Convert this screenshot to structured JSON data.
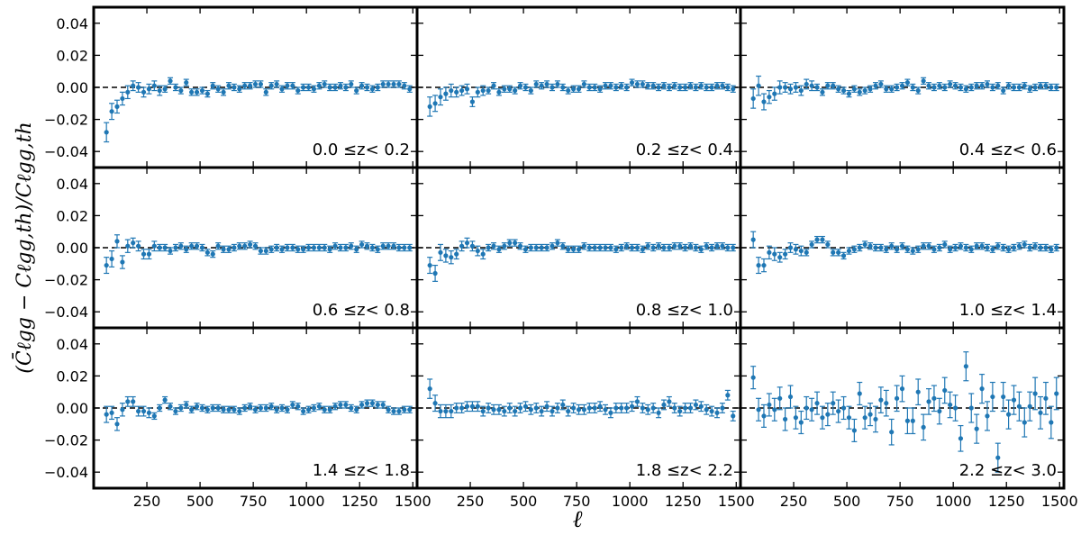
{
  "chart_data": {
    "type": "scatter",
    "xlabel": "ℓ",
    "ylabel": "(C̄ℓgg − Cℓgg,th)/Cℓgg,th",
    "xlim": [
      0,
      1520
    ],
    "ylim": [
      -0.05,
      0.05
    ],
    "xticks": [
      250,
      500,
      750,
      1000,
      1250,
      1500
    ],
    "yticks": [
      -0.04,
      -0.02,
      0.0,
      0.02,
      0.04
    ],
    "xtick_labels": [
      "250",
      "500",
      "750",
      "1000",
      "1250",
      "1500"
    ],
    "ytick_labels": [
      "−0.04",
      "−0.02",
      "0.00",
      "0.02",
      "0.04"
    ],
    "reference_line": 0.0,
    "marker_color": "#1f77b4",
    "x": [
      60,
      85,
      110,
      135,
      160,
      185,
      210,
      235,
      260,
      285,
      310,
      335,
      360,
      385,
      410,
      435,
      460,
      485,
      510,
      535,
      560,
      585,
      610,
      635,
      660,
      685,
      710,
      735,
      760,
      785,
      810,
      835,
      860,
      885,
      910,
      935,
      960,
      985,
      1010,
      1035,
      1060,
      1085,
      1110,
      1135,
      1160,
      1185,
      1210,
      1235,
      1260,
      1285,
      1310,
      1335,
      1360,
      1385,
      1410,
      1435,
      1460,
      1485
    ],
    "panels": [
      {
        "label": "0.0  ≤z<  0.2",
        "y": [
          -0.028,
          -0.015,
          -0.012,
          -0.007,
          -0.003,
          0.001,
          0.0,
          -0.003,
          -0.001,
          0.001,
          -0.002,
          -0.001,
          0.004,
          0.0,
          -0.002,
          0.003,
          -0.003,
          -0.003,
          -0.002,
          -0.004,
          0.001,
          -0.001,
          -0.003,
          0.001,
          0.0,
          -0.001,
          0.001,
          0.001,
          0.002,
          0.002,
          -0.003,
          0.001,
          0.002,
          -0.001,
          0.001,
          0.001,
          -0.002,
          0.0,
          0.0,
          -0.001,
          0.001,
          0.002,
          0.0,
          0.0,
          0.001,
          0.0,
          0.002,
          -0.002,
          0.001,
          0.0,
          -0.001,
          0.0,
          0.002,
          0.002,
          0.002,
          0.002,
          0.001,
          -0.001
        ],
        "err": [
          0.006,
          0.005,
          0.004,
          0.004,
          0.004,
          0.003,
          0.003,
          0.003,
          0.003,
          0.003,
          0.003,
          0.002,
          0.002,
          0.002,
          0.002,
          0.002,
          0.002,
          0.002,
          0.002,
          0.002,
          0.002,
          0.002,
          0.002,
          0.002,
          0.002,
          0.002,
          0.002,
          0.002,
          0.002,
          0.002,
          0.002,
          0.002,
          0.002,
          0.002,
          0.002,
          0.002,
          0.002,
          0.002,
          0.002,
          0.002,
          0.002,
          0.002,
          0.002,
          0.002,
          0.002,
          0.002,
          0.002,
          0.002,
          0.002,
          0.002,
          0.002,
          0.002,
          0.002,
          0.002,
          0.002,
          0.002,
          0.002,
          0.002
        ]
      },
      {
        "label": "0.2  ≤z<  0.4",
        "y": [
          -0.012,
          -0.01,
          -0.006,
          -0.004,
          -0.002,
          -0.003,
          -0.002,
          -0.001,
          -0.009,
          -0.003,
          -0.002,
          -0.002,
          0.001,
          -0.003,
          -0.001,
          -0.001,
          -0.002,
          0.001,
          0.0,
          -0.002,
          0.002,
          0.001,
          0.002,
          0.0,
          0.002,
          0.0,
          -0.002,
          -0.001,
          -0.001,
          0.002,
          0.0,
          0.0,
          -0.001,
          0.001,
          0.001,
          0.0,
          0.001,
          0.0,
          0.003,
          0.002,
          0.002,
          0.001,
          0.001,
          0.0,
          0.001,
          0.0,
          0.001,
          0.0,
          0.0,
          0.001,
          0.0,
          0.001,
          0.0,
          0.0,
          0.001,
          0.001,
          0.0,
          -0.001
        ],
        "err": [
          0.006,
          0.005,
          0.005,
          0.004,
          0.004,
          0.003,
          0.003,
          0.003,
          0.003,
          0.003,
          0.003,
          0.002,
          0.002,
          0.002,
          0.002,
          0.002,
          0.002,
          0.002,
          0.002,
          0.002,
          0.002,
          0.002,
          0.002,
          0.002,
          0.002,
          0.002,
          0.002,
          0.002,
          0.002,
          0.002,
          0.002,
          0.002,
          0.002,
          0.002,
          0.002,
          0.002,
          0.002,
          0.002,
          0.002,
          0.002,
          0.002,
          0.002,
          0.002,
          0.002,
          0.002,
          0.002,
          0.002,
          0.002,
          0.002,
          0.002,
          0.002,
          0.002,
          0.002,
          0.002,
          0.002,
          0.002,
          0.002,
          0.002
        ]
      },
      {
        "label": "0.4  ≤z<  0.6",
        "y": [
          -0.007,
          0.001,
          -0.009,
          -0.006,
          -0.004,
          0.0,
          0.0,
          -0.001,
          0.0,
          -0.002,
          0.002,
          0.001,
          0.0,
          -0.003,
          0.001,
          0.001,
          -0.001,
          -0.002,
          -0.004,
          -0.001,
          -0.003,
          -0.002,
          -0.001,
          0.001,
          0.002,
          -0.001,
          -0.001,
          0.0,
          0.001,
          0.003,
          0.0,
          -0.002,
          0.004,
          0.001,
          0.0,
          0.001,
          0.0,
          0.002,
          0.001,
          0.0,
          -0.001,
          0.0,
          0.001,
          0.001,
          0.002,
          0.0,
          0.001,
          -0.002,
          0.001,
          0.0,
          0.0,
          0.001,
          -0.001,
          0.0,
          0.001,
          0.001,
          0.0,
          0.0
        ],
        "err": [
          0.006,
          0.006,
          0.005,
          0.004,
          0.004,
          0.004,
          0.003,
          0.003,
          0.003,
          0.003,
          0.003,
          0.003,
          0.002,
          0.002,
          0.002,
          0.002,
          0.002,
          0.002,
          0.002,
          0.002,
          0.002,
          0.002,
          0.002,
          0.002,
          0.002,
          0.002,
          0.002,
          0.002,
          0.002,
          0.002,
          0.002,
          0.002,
          0.002,
          0.002,
          0.002,
          0.002,
          0.002,
          0.002,
          0.002,
          0.002,
          0.002,
          0.002,
          0.002,
          0.002,
          0.002,
          0.002,
          0.002,
          0.002,
          0.002,
          0.002,
          0.002,
          0.002,
          0.002,
          0.002,
          0.002,
          0.002,
          0.002,
          0.002
        ]
      },
      {
        "label": "0.6  ≤z<  0.8",
        "y": [
          -0.011,
          -0.007,
          0.004,
          -0.009,
          0.001,
          0.003,
          0.001,
          -0.004,
          -0.004,
          0.001,
          0.0,
          0.0,
          -0.002,
          0.0,
          0.001,
          -0.001,
          0.001,
          0.001,
          0.0,
          -0.003,
          -0.004,
          0.001,
          -0.001,
          -0.001,
          0.0,
          0.001,
          0.001,
          0.002,
          0.001,
          -0.002,
          -0.002,
          -0.001,
          0.0,
          -0.001,
          0.0,
          0.0,
          -0.001,
          -0.001,
          0.0,
          0.0,
          0.0,
          0.0,
          -0.001,
          0.001,
          0.0,
          0.0,
          0.001,
          -0.001,
          0.002,
          0.001,
          0.0,
          -0.001,
          0.001,
          0.001,
          0.001,
          0.0,
          0.0,
          0.0
        ],
        "err": [
          0.005,
          0.005,
          0.004,
          0.004,
          0.004,
          0.003,
          0.003,
          0.003,
          0.003,
          0.003,
          0.002,
          0.002,
          0.002,
          0.002,
          0.002,
          0.002,
          0.002,
          0.002,
          0.002,
          0.002,
          0.002,
          0.002,
          0.002,
          0.002,
          0.002,
          0.002,
          0.002,
          0.002,
          0.002,
          0.002,
          0.002,
          0.002,
          0.002,
          0.002,
          0.002,
          0.002,
          0.002,
          0.002,
          0.002,
          0.002,
          0.002,
          0.002,
          0.002,
          0.002,
          0.002,
          0.002,
          0.002,
          0.002,
          0.002,
          0.002,
          0.002,
          0.002,
          0.002,
          0.002,
          0.002,
          0.002,
          0.002,
          0.002
        ]
      },
      {
        "label": "0.8  ≤z<  1.0",
        "y": [
          -0.011,
          -0.016,
          -0.003,
          -0.005,
          -0.006,
          -0.004,
          0.001,
          0.003,
          0.001,
          -0.002,
          -0.004,
          0.0,
          0.001,
          -0.001,
          0.001,
          0.003,
          0.003,
          0.001,
          -0.001,
          0.0,
          0.0,
          0.0,
          0.0,
          0.001,
          0.003,
          0.001,
          -0.001,
          -0.001,
          -0.001,
          0.001,
          0.0,
          0.0,
          0.0,
          0.0,
          0.0,
          -0.001,
          0.0,
          0.001,
          0.0,
          0.0,
          -0.001,
          0.001,
          0.0,
          0.001,
          0.0,
          0.0,
          0.001,
          0.001,
          0.0,
          0.001,
          0.0,
          -0.001,
          0.001,
          0.0,
          0.001,
          0.001,
          0.0,
          0.0
        ],
        "err": [
          0.005,
          0.005,
          0.005,
          0.004,
          0.004,
          0.003,
          0.003,
          0.003,
          0.003,
          0.003,
          0.003,
          0.002,
          0.002,
          0.002,
          0.002,
          0.002,
          0.002,
          0.002,
          0.002,
          0.002,
          0.002,
          0.002,
          0.002,
          0.002,
          0.002,
          0.002,
          0.002,
          0.002,
          0.002,
          0.002,
          0.002,
          0.002,
          0.002,
          0.002,
          0.002,
          0.002,
          0.002,
          0.002,
          0.002,
          0.002,
          0.002,
          0.002,
          0.002,
          0.002,
          0.002,
          0.002,
          0.002,
          0.002,
          0.002,
          0.002,
          0.002,
          0.002,
          0.002,
          0.002,
          0.002,
          0.002,
          0.002,
          0.002
        ]
      },
      {
        "label": "1.0  ≤z<  1.4",
        "y": [
          0.005,
          -0.011,
          -0.011,
          -0.003,
          -0.004,
          -0.006,
          -0.004,
          0.0,
          -0.001,
          -0.002,
          -0.003,
          0.002,
          0.005,
          0.005,
          0.002,
          -0.003,
          -0.003,
          -0.005,
          -0.002,
          -0.001,
          0.0,
          0.002,
          0.001,
          0.0,
          0.0,
          -0.001,
          0.001,
          -0.001,
          0.001,
          -0.001,
          -0.002,
          -0.001,
          0.001,
          0.001,
          -0.001,
          0.0,
          0.002,
          -0.001,
          0.0,
          0.001,
          0.0,
          -0.001,
          0.001,
          0.001,
          0.0,
          -0.001,
          0.001,
          0.0,
          -0.001,
          0.0,
          0.001,
          0.002,
          0.0,
          0.001,
          0.0,
          0.0,
          -0.001,
          0.0
        ],
        "err": [
          0.005,
          0.005,
          0.004,
          0.004,
          0.004,
          0.003,
          0.003,
          0.003,
          0.003,
          0.003,
          0.002,
          0.002,
          0.002,
          0.002,
          0.002,
          0.002,
          0.002,
          0.002,
          0.002,
          0.002,
          0.002,
          0.002,
          0.002,
          0.002,
          0.002,
          0.002,
          0.002,
          0.002,
          0.002,
          0.002,
          0.002,
          0.002,
          0.002,
          0.002,
          0.002,
          0.002,
          0.002,
          0.002,
          0.002,
          0.002,
          0.002,
          0.002,
          0.002,
          0.002,
          0.002,
          0.002,
          0.002,
          0.002,
          0.002,
          0.002,
          0.002,
          0.002,
          0.002,
          0.002,
          0.002,
          0.002,
          0.002,
          0.002
        ]
      },
      {
        "label": "1.4  ≤z<  1.8",
        "y": [
          -0.004,
          -0.003,
          -0.01,
          -0.001,
          0.004,
          0.004,
          -0.002,
          -0.002,
          -0.003,
          -0.005,
          0.0,
          0.005,
          0.001,
          -0.002,
          0.0,
          0.002,
          -0.001,
          0.001,
          0.0,
          -0.001,
          0.0,
          0.0,
          -0.001,
          -0.001,
          -0.001,
          -0.002,
          0.0,
          0.001,
          -0.001,
          0.0,
          0.0,
          0.001,
          -0.001,
          0.0,
          -0.001,
          0.002,
          0.001,
          -0.002,
          -0.001,
          0.0,
          0.001,
          -0.001,
          -0.001,
          0.001,
          0.002,
          0.002,
          0.0,
          -0.001,
          0.002,
          0.003,
          0.003,
          0.002,
          0.002,
          -0.001,
          -0.002,
          -0.002,
          -0.001,
          -0.001
        ],
        "err": [
          0.005,
          0.004,
          0.004,
          0.004,
          0.003,
          0.003,
          0.003,
          0.003,
          0.003,
          0.002,
          0.002,
          0.002,
          0.002,
          0.002,
          0.002,
          0.002,
          0.002,
          0.002,
          0.002,
          0.002,
          0.002,
          0.002,
          0.002,
          0.002,
          0.002,
          0.002,
          0.002,
          0.002,
          0.002,
          0.002,
          0.002,
          0.002,
          0.002,
          0.002,
          0.002,
          0.002,
          0.002,
          0.002,
          0.002,
          0.002,
          0.002,
          0.002,
          0.002,
          0.002,
          0.002,
          0.002,
          0.002,
          0.002,
          0.002,
          0.002,
          0.002,
          0.002,
          0.002,
          0.002,
          0.002,
          0.002,
          0.002,
          0.002
        ]
      },
      {
        "label": "1.8  ≤z<  2.2",
        "y": [
          0.012,
          0.003,
          -0.002,
          -0.002,
          -0.002,
          0.0,
          0.0,
          0.001,
          0.001,
          0.001,
          -0.002,
          0.0,
          -0.001,
          -0.001,
          -0.002,
          0.0,
          -0.002,
          0.0,
          0.001,
          -0.001,
          0.0,
          -0.002,
          0.001,
          -0.002,
          0.0,
          0.002,
          -0.002,
          0.0,
          -0.001,
          -0.001,
          0.0,
          0.0,
          0.001,
          -0.001,
          -0.003,
          0.0,
          0.0,
          0.0,
          0.001,
          0.004,
          0.0,
          -0.001,
          0.0,
          -0.003,
          0.002,
          0.004,
          0.0,
          -0.002,
          0.0,
          0.0,
          0.002,
          0.001,
          -0.001,
          -0.002,
          -0.003,
          0.0,
          0.008,
          -0.005
        ],
        "err": [
          0.006,
          0.005,
          0.004,
          0.004,
          0.004,
          0.003,
          0.003,
          0.003,
          0.003,
          0.003,
          0.003,
          0.003,
          0.003,
          0.003,
          0.003,
          0.003,
          0.003,
          0.003,
          0.003,
          0.003,
          0.003,
          0.003,
          0.003,
          0.003,
          0.003,
          0.003,
          0.003,
          0.003,
          0.003,
          0.003,
          0.003,
          0.003,
          0.003,
          0.003,
          0.003,
          0.003,
          0.003,
          0.003,
          0.003,
          0.003,
          0.003,
          0.003,
          0.003,
          0.003,
          0.003,
          0.003,
          0.003,
          0.003,
          0.003,
          0.003,
          0.003,
          0.003,
          0.003,
          0.003,
          0.003,
          0.003,
          0.003,
          0.003
        ]
      },
      {
        "label": "2.2  ≤z<  3.0",
        "y": [
          0.019,
          -0.001,
          -0.005,
          0.002,
          -0.001,
          0.006,
          -0.007,
          0.007,
          -0.006,
          -0.009,
          0.0,
          -0.001,
          0.003,
          -0.006,
          -0.004,
          0.003,
          -0.002,
          0.0,
          -0.006,
          -0.014,
          0.009,
          -0.006,
          -0.004,
          -0.007,
          0.005,
          0.003,
          -0.015,
          0.006,
          0.012,
          -0.008,
          -0.008,
          0.01,
          -0.012,
          0.004,
          0.006,
          -0.002,
          0.011,
          0.002,
          0.0,
          -0.019,
          0.026,
          0.0,
          -0.013,
          0.012,
          -0.005,
          0.007,
          -0.031,
          0.007,
          -0.004,
          0.005,
          0.001,
          -0.009,
          0.001,
          0.009,
          -0.003,
          0.006,
          -0.009,
          0.009
        ],
        "err": [
          0.007,
          0.007,
          0.007,
          0.007,
          0.007,
          0.007,
          0.007,
          0.007,
          0.007,
          0.007,
          0.007,
          0.007,
          0.007,
          0.007,
          0.007,
          0.007,
          0.007,
          0.007,
          0.007,
          0.007,
          0.007,
          0.007,
          0.007,
          0.008,
          0.008,
          0.008,
          0.008,
          0.008,
          0.008,
          0.008,
          0.008,
          0.008,
          0.008,
          0.008,
          0.008,
          0.008,
          0.008,
          0.008,
          0.008,
          0.008,
          0.009,
          0.009,
          0.009,
          0.009,
          0.009,
          0.009,
          0.009,
          0.009,
          0.009,
          0.009,
          0.009,
          0.009,
          0.009,
          0.01,
          0.01,
          0.01,
          0.01,
          0.01
        ]
      }
    ]
  }
}
